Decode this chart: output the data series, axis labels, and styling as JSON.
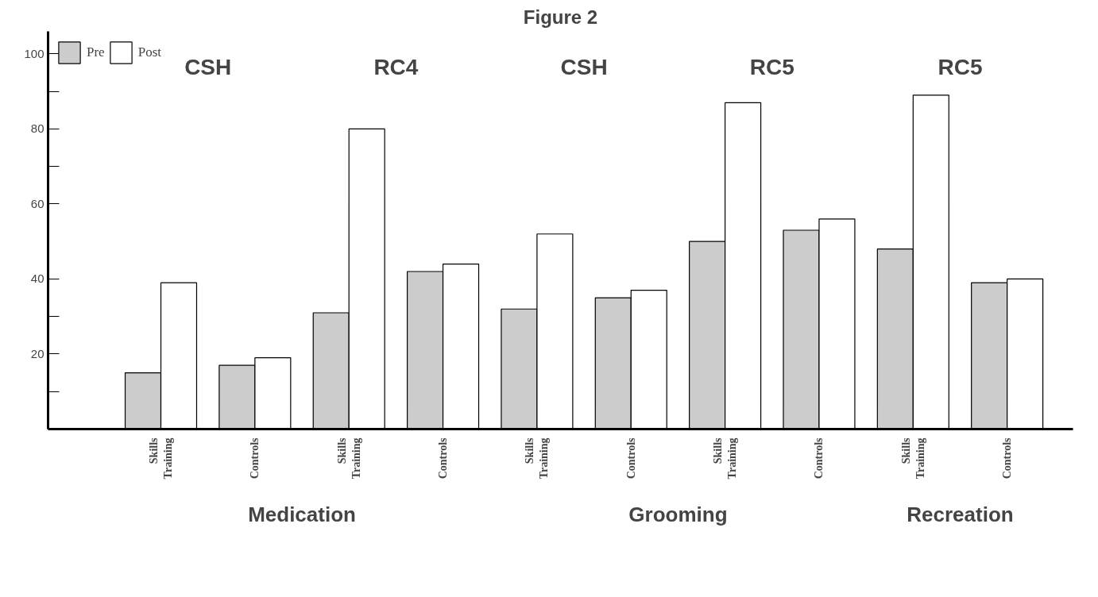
{
  "chart_data": {
    "type": "bar",
    "title": "Figure 2",
    "categories": [
      "Skills\nTraining",
      "Controls",
      "Skills\nTraining",
      "Controls",
      "Skills\nTraining",
      "Controls",
      "Skills\nTraining",
      "Controls",
      "Skills\nTraining",
      "Controls"
    ],
    "series": [
      {
        "name": "Pre",
        "color": "#cccccc",
        "values": [
          15,
          17,
          31,
          42,
          32,
          35,
          50,
          53,
          48,
          39
        ]
      },
      {
        "name": "Post",
        "color": "#ffffff",
        "values": [
          39,
          19,
          80,
          44,
          52,
          37,
          87,
          56,
          89,
          40
        ]
      }
    ],
    "ylim": [
      0,
      106
    ],
    "yticks": [
      {
        "value": 10,
        "label": null
      },
      20,
      {
        "value": 30,
        "label": null
      },
      40,
      60,
      {
        "value": 70,
        "label": null
      },
      80,
      {
        "value": 90,
        "label": null
      },
      100
    ],
    "annotations": [
      "CSH",
      "RC4",
      "CSH",
      "RC5",
      "RC5",
      "Medication",
      "Grooming",
      "Recreation"
    ],
    "grid": false,
    "legend": "top left"
  }
}
